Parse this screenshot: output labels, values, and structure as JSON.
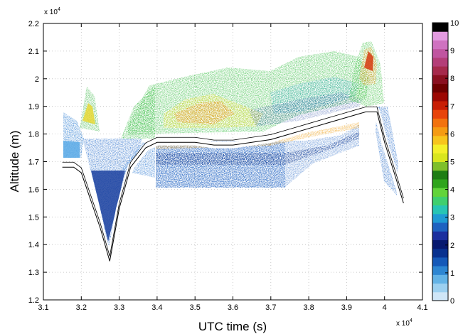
{
  "chart_data": {
    "type": "heatmap",
    "xlabel": "UTC time (s)",
    "ylabel": "Altitude (m)",
    "x_multiplier": "x 10",
    "x_multiplier_exp": "4",
    "y_multiplier": "x 10",
    "y_multiplier_exp": "4",
    "xlim": [
      3.1,
      4.1
    ],
    "ylim": [
      1.2,
      2.2
    ],
    "x_ticks": [
      "3.1",
      "3.2",
      "3.3",
      "3.4",
      "3.5",
      "3.6",
      "3.7",
      "3.8",
      "3.9",
      "4",
      "4.1"
    ],
    "y_ticks": [
      "1.2",
      "1.3",
      "1.4",
      "1.5",
      "1.6",
      "1.7",
      "1.8",
      "1.9",
      "2",
      "2.1",
      "2.2"
    ],
    "grid": true,
    "colorbar": {
      "min": 0,
      "max": 10,
      "ticks": [
        "0",
        "1",
        "2",
        "3",
        "4",
        "5",
        "6",
        "7",
        "8",
        "9",
        "10"
      ],
      "colors": [
        "#cfe6f7",
        "#9cd0f0",
        "#63b3e6",
        "#2d86d2",
        "#1559b8",
        "#08318f",
        "#07196f",
        "#1b2f9e",
        "#1e62c0",
        "#1f9bd3",
        "#27c5b4",
        "#3fcf6e",
        "#62d43a",
        "#2fa41c",
        "#1e7d14",
        "#7fbf2a",
        "#d9e61e",
        "#f4f02a",
        "#f7c51d",
        "#f59b13",
        "#f2720e",
        "#e8440a",
        "#c81e05",
        "#9c0803",
        "#6e0000",
        "#8a1020",
        "#a62a4c",
        "#b43e78",
        "#c055a0",
        "#cf72c0",
        "#e39be0",
        "#000000"
      ]
    },
    "flight_altitude_track": [
      [
        3.15,
        1.68
      ],
      [
        3.18,
        1.68
      ],
      [
        3.2,
        1.66
      ],
      [
        3.25,
        1.46
      ],
      [
        3.275,
        1.34
      ],
      [
        3.3,
        1.53
      ],
      [
        3.33,
        1.68
      ],
      [
        3.37,
        1.75
      ],
      [
        3.4,
        1.77
      ],
      [
        3.45,
        1.77
      ],
      [
        3.5,
        1.77
      ],
      [
        3.55,
        1.76
      ],
      [
        3.6,
        1.76
      ],
      [
        3.65,
        1.77
      ],
      [
        3.7,
        1.78
      ],
      [
        3.75,
        1.8
      ],
      [
        3.8,
        1.82
      ],
      [
        3.85,
        1.84
      ],
      [
        3.9,
        1.86
      ],
      [
        3.95,
        1.88
      ],
      [
        3.98,
        1.88
      ],
      [
        4.0,
        1.77
      ],
      [
        4.03,
        1.64
      ],
      [
        4.05,
        1.55
      ]
    ],
    "curtain_regions": [
      {
        "x": [
          3.15,
          3.2
        ],
        "y": [
          1.72,
          1.87
        ],
        "level": 1.2
      },
      {
        "x": [
          3.21,
          3.25
        ],
        "y": [
          1.79,
          1.94
        ],
        "level": 3.3
      },
      {
        "x": [
          3.3,
          3.4
        ],
        "y": [
          1.79,
          1.9
        ],
        "level": 2.6
      },
      {
        "x": [
          3.4,
          3.7
        ],
        "y": [
          1.6,
          1.72
        ],
        "level": 1.4
      },
      {
        "x": [
          3.4,
          3.5
        ],
        "y": [
          1.74,
          1.76
        ],
        "level": 5.0
      },
      {
        "x": [
          3.4,
          3.8
        ],
        "y": [
          1.79,
          1.96
        ],
        "level": 3.3
      },
      {
        "x": [
          3.45,
          3.6
        ],
        "y": [
          1.84,
          1.89
        ],
        "level": 5.0
      },
      {
        "x": [
          3.7,
          3.95
        ],
        "y": [
          1.86,
          2.02
        ],
        "level": 3.3
      },
      {
        "x": [
          3.73,
          3.87
        ],
        "y": [
          1.76,
          1.82
        ],
        "level": 4.0
      },
      {
        "x": [
          3.93,
          3.99
        ],
        "y": [
          1.93,
          2.12
        ],
        "level": 4.6
      },
      {
        "x": [
          3.95,
          3.99
        ],
        "y": [
          2.01,
          2.09
        ],
        "level": 6.3
      },
      {
        "x": [
          4.0,
          4.05
        ],
        "y": [
          1.57,
          1.75
        ],
        "level": 1.4
      }
    ]
  }
}
